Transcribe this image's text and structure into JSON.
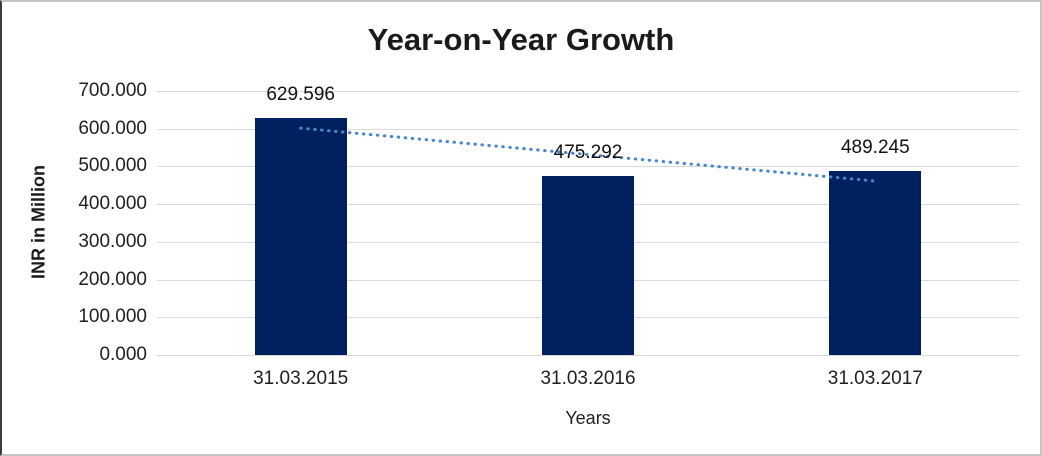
{
  "chart_data": {
    "type": "bar",
    "title": "Year-on-Year Growth",
    "xlabel": "Years",
    "ylabel": "INR in Million",
    "categories": [
      "31.03.2015",
      "31.03.2016",
      "31.03.2017"
    ],
    "series": [
      {
        "values": [
          629.596,
          475.292,
          489.245
        ],
        "value_labels": [
          "629.596",
          "475.292",
          "489.245"
        ],
        "color": "#002060"
      }
    ],
    "ylim": [
      0,
      700
    ],
    "ytick_step": 100,
    "ytick_labels": [
      "0.000",
      "100.000",
      "200.000",
      "300.000",
      "400.000",
      "500.000",
      "600.000",
      "700.000"
    ],
    "grid": true,
    "legend": "none",
    "data_labels": true,
    "trendline": {
      "type": "linear",
      "style": "dotted",
      "color": "#4a87c9"
    },
    "colors": {
      "bar": "#002060",
      "trendline": "#4a87c9",
      "gridline": "#d9d9d9",
      "text": "#1a1a1a",
      "background": "#ffffff"
    }
  }
}
